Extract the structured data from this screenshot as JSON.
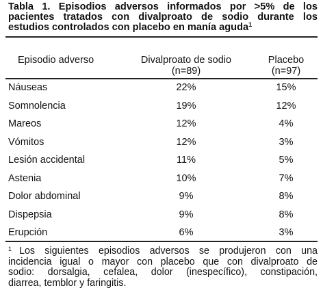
{
  "header": {
    "title_lines": [
      "Tabla 1. Episodios adversos informados por >5% de los",
      "pacientes tratados con divalproato de sodio durante los",
      "estudios controlados con placebo en manía aguda"
    ],
    "title_sup": "1"
  },
  "table": {
    "columns": [
      [
        "Episodio adverso"
      ],
      [
        "Divalproato de sodio",
        "(n=89)"
      ],
      [
        "Placebo",
        "(n=97)"
      ]
    ],
    "rows": [
      [
        "Náuseas",
        "22%",
        "15%"
      ],
      [
        "Somnolencia",
        "19%",
        "12%"
      ],
      [
        "Mareos",
        "12%",
        "4%"
      ],
      [
        "Vómitos",
        "12%",
        "3%"
      ],
      [
        "Lesión accidental",
        "11%",
        "5%"
      ],
      [
        "Astenia",
        "10%",
        "7%"
      ],
      [
        "Dolor abdominal",
        "9%",
        "8%"
      ],
      [
        "Dispepsia",
        "9%",
        "8%"
      ],
      [
        "Erupción",
        "6%",
        "3%"
      ]
    ]
  },
  "footnote": {
    "sup": "1",
    "lines": [
      "Los siguientes episodios adversos se produjeron con una",
      "incidencia igual o mayor con placebo que con divalproato de",
      "sodio: dorsalgia, cefalea, dolor (inespecífico), constipación,",
      "diarrea, temblor y faringitis."
    ]
  }
}
